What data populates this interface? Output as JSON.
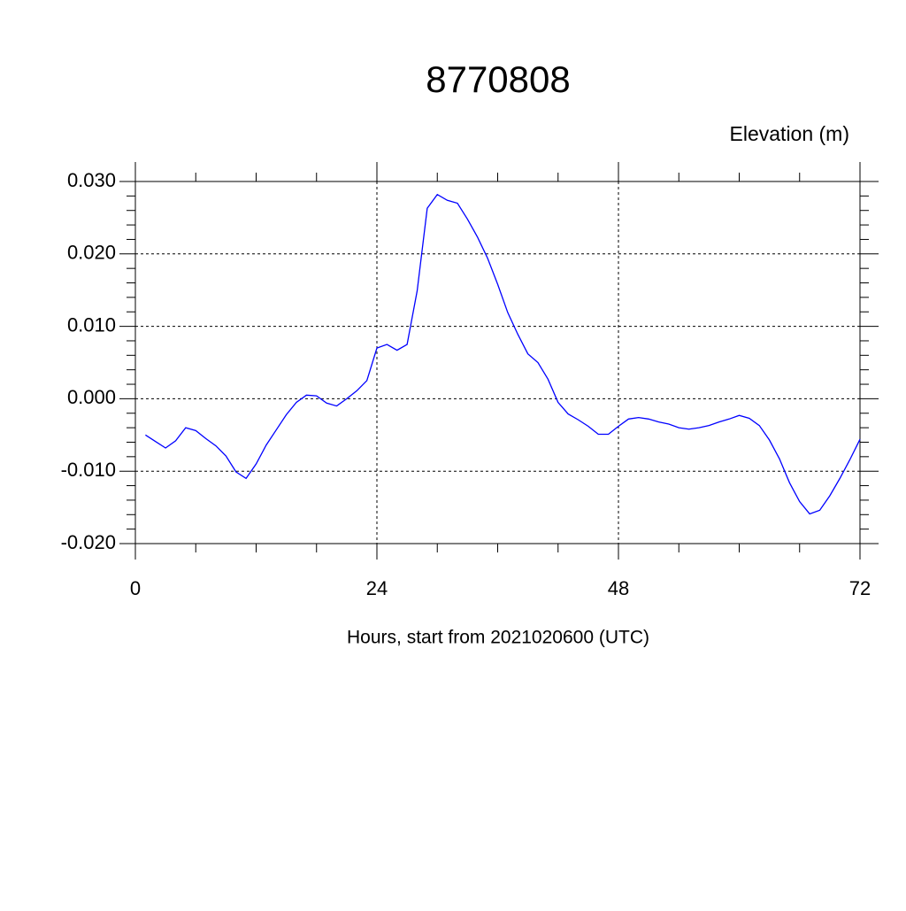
{
  "chart_data": {
    "type": "line",
    "title": "8770808",
    "y_label": "Elevation (m)",
    "x_label": "Hours, start from 2021020600 (UTC)",
    "x": [
      1,
      2,
      3,
      4,
      5,
      6,
      7,
      8,
      9,
      10,
      11,
      12,
      13,
      14,
      15,
      16,
      17,
      18,
      19,
      20,
      21,
      22,
      23,
      24,
      25,
      26,
      27,
      28,
      29,
      30,
      31,
      32,
      33,
      34,
      35,
      36,
      37,
      38,
      39,
      40,
      41,
      42,
      43,
      44,
      45,
      46,
      47,
      48,
      49,
      50,
      51,
      52,
      53,
      54,
      55,
      56,
      57,
      58,
      59,
      60,
      61,
      62,
      63,
      64,
      65,
      66,
      67,
      68,
      69,
      70,
      71,
      72
    ],
    "series": [
      {
        "color": "#0000ff",
        "values": [
          -0.005,
          -0.0059,
          -0.0068,
          -0.0058,
          -0.004,
          -0.0044,
          -0.0055,
          -0.0065,
          -0.0079,
          -0.0101,
          -0.011,
          -0.009,
          -0.0064,
          -0.0043,
          -0.0022,
          -0.0005,
          0.0005,
          0.0004,
          -0.0006,
          -0.001,
          0.0,
          0.0011,
          0.0025,
          0.007,
          0.0075,
          0.0067,
          0.0075,
          0.0149,
          0.0263,
          0.0282,
          0.0274,
          0.027,
          0.0248,
          0.0223,
          0.0194,
          0.0158,
          0.0119,
          0.0089,
          0.0062,
          0.005,
          0.0027,
          -0.0005,
          -0.0021,
          -0.0029,
          -0.0038,
          -0.0049,
          -0.0049,
          -0.0038,
          -0.0028,
          -0.0026,
          -0.0028,
          -0.0032,
          -0.0035,
          -0.004,
          -0.0042,
          -0.004,
          -0.0037,
          -0.0032,
          -0.0028,
          -0.0023,
          -0.0027,
          -0.0037,
          -0.0057,
          -0.0083,
          -0.0116,
          -0.0142,
          -0.0159,
          -0.0154,
          -0.0134,
          -0.011,
          -0.0084,
          -0.0056
        ]
      }
    ],
    "xlim": [
      0,
      72
    ],
    "xticks": [
      0,
      24,
      48,
      72
    ],
    "ylim": [
      -0.02,
      0.03
    ],
    "yticks": [
      {
        "value": -0.02,
        "label": "-0.020"
      },
      {
        "value": -0.01,
        "label": "-0.010"
      },
      {
        "value": 0,
        "label": "0.000"
      },
      {
        "value": 0.01,
        "label": "0.010"
      },
      {
        "value": 0.02,
        "label": "0.020"
      },
      {
        "value": 0.03,
        "label": "0.030"
      }
    ],
    "grid": true
  }
}
